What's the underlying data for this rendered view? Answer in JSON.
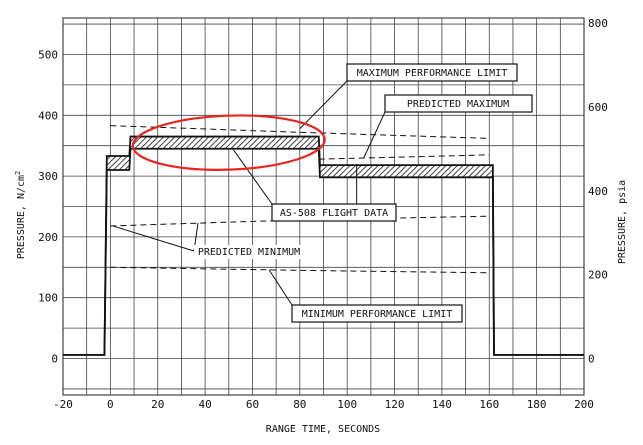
{
  "chart_data": {
    "type": "line",
    "xlabel": "RANGE TIME, SECONDS",
    "ylabel_left": "PRESSURE, N/cm",
    "ylabel_left_superscript": "2",
    "ylabel_right": "PRESSURE, psia",
    "xlim": [
      -20,
      200
    ],
    "ylim_left": [
      -60,
      560
    ],
    "ylim_right_psia": [
      -87,
      812
    ],
    "x_ticks": [
      "-20",
      "0",
      "20",
      "40",
      "60",
      "80",
      "100",
      "120",
      "140",
      "160",
      "180",
      "200"
    ],
    "y_left_ticks": [
      "0",
      "100",
      "200",
      "300",
      "400",
      "500"
    ],
    "y_right_ticks": [
      "0",
      "200",
      "400",
      "600",
      "800"
    ],
    "grid": true,
    "series": [
      {
        "name": "AS-508 FLIGHT DATA",
        "style": "hatched band",
        "x": [
          -20,
          -2.5,
          -1.5,
          8,
          8.5,
          88,
          88.5,
          161.5,
          162,
          166,
          200
        ],
        "lo": [
          6,
          6,
          310,
          310,
          345,
          345,
          298,
          298,
          6,
          6,
          6
        ],
        "hi": [
          6,
          6,
          333,
          333,
          365,
          365,
          318,
          318,
          6,
          6,
          6
        ]
      },
      {
        "name": "MAXIMUM PERFORMANCE LIMIT",
        "style": "dashed",
        "x": [
          0,
          80,
          160
        ],
        "y": [
          383,
          372,
          362
        ]
      },
      {
        "name": "PREDICTED MAXIMUM",
        "style": "dashed",
        "x": [
          88,
          100,
          160
        ],
        "y": [
          328,
          329,
          335
        ]
      },
      {
        "name": "PREDICTED MINIMUM",
        "style": "dashed",
        "x": [
          0,
          80,
          160
        ],
        "y": [
          218,
          228,
          234
        ]
      },
      {
        "name": "MINIMUM PERFORMANCE LIMIT",
        "style": "dashed",
        "x": [
          0,
          80,
          160
        ],
        "y": [
          150,
          145,
          141
        ]
      }
    ],
    "annotations": [
      {
        "text": "MAXIMUM PERFORMANCE LIMIT",
        "boxed": true,
        "points_to": [
          80,
          378
        ]
      },
      {
        "text": "PREDICTED MAXIMUM",
        "boxed": true,
        "points_to": [
          107,
          330
        ]
      },
      {
        "text": "AS-508 FLIGHT DATA",
        "boxed": true,
        "points_to": [
          [
            52,
            343
          ],
          [
            104,
            320
          ]
        ]
      },
      {
        "text": "PREDICTED MINIMUM",
        "boxed": false,
        "points_to": [
          [
            1,
            218
          ],
          [
            37,
            223
          ]
        ]
      },
      {
        "text": "MINIMUM PERFORMANCE LIMIT",
        "boxed": true,
        "points_to": [
          67,
          146
        ]
      }
    ]
  },
  "colors": {
    "ink": "#111111",
    "grid": "#444444",
    "highlight_ellipse": "#e8241f"
  }
}
